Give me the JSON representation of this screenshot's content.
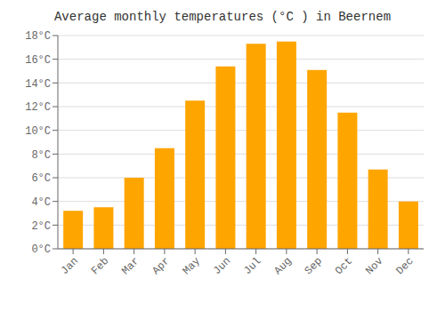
{
  "chart_data": {
    "type": "bar",
    "title": "Average monthly temperatures (°C ) in Beernem",
    "categories": [
      "Jan",
      "Feb",
      "Mar",
      "Apr",
      "May",
      "Jun",
      "Jul",
      "Aug",
      "Sep",
      "Oct",
      "Nov",
      "Dec"
    ],
    "values": [
      3.2,
      3.5,
      6.0,
      8.5,
      12.5,
      15.4,
      17.3,
      17.5,
      15.1,
      11.5,
      6.7,
      4.0
    ],
    "color": "#FFA500",
    "ylim": [
      0,
      18
    ],
    "yticks": [
      {
        "value": 0,
        "label": "0°C"
      },
      {
        "value": 2,
        "label": "2°C"
      },
      {
        "value": 4,
        "label": "4°C"
      },
      {
        "value": 6,
        "label": "6°C"
      },
      {
        "value": 8,
        "label": "8°C"
      },
      {
        "value": 10,
        "label": "10°C"
      },
      {
        "value": 12,
        "label": "12°C"
      },
      {
        "value": 14,
        "label": "14°C"
      },
      {
        "value": 16,
        "label": "16°C"
      },
      {
        "value": 18,
        "label": "18°C"
      }
    ],
    "grid": true
  }
}
